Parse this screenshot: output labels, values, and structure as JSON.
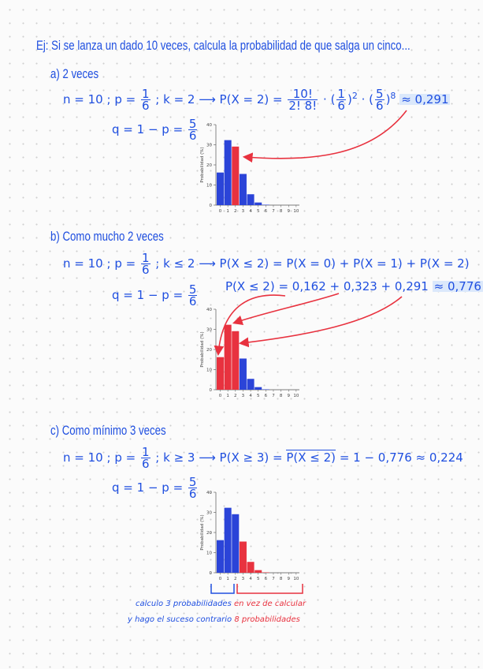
{
  "header": {
    "label": "Ej:",
    "text": "Si se lanza un dado 10 veces, calcula la probabilidad de que salga un cinco..."
  },
  "part_a": {
    "title": "a) 2 veces",
    "n": "n = 10 ;",
    "p_lhs": "p =",
    "p_num": "1",
    "p_den": "6",
    "p_sep": ";",
    "k": "k = 2",
    "arrow": "⟶",
    "lhs": "P(X = 2) =",
    "coef_num": "10!",
    "coef_den": "2! 8!",
    "dot1": "·",
    "f1_num": "1",
    "f1_den": "6",
    "exp1": "2",
    "dot2": "·",
    "f2_num": "5",
    "f2_den": "6",
    "exp2": "8",
    "approx": "≈ 0,291",
    "q_lhs": "q = 1 − p =",
    "q_num": "5",
    "q_den": "6"
  },
  "part_b": {
    "title": "b) Como mucho 2 veces",
    "n": "n = 10 ;",
    "p_lhs": "p =",
    "p_num": "1",
    "p_den": "6",
    "p_sep": ";",
    "k": "k ≤ 2",
    "arrow": "⟶",
    "expr": "P(X ≤ 2) = P(X = 0) + P(X = 1) + P(X = 2)",
    "sum_lhs": "P(X ≤ 2) =",
    "sum_terms": "0,162 + 0,323 + 0,291",
    "sum_result": "≈ 0,776",
    "q_lhs": "q = 1 − p =",
    "q_num": "5",
    "q_den": "6"
  },
  "part_c": {
    "title": "c) Como mínimo 3 veces",
    "n": "n = 10 ;",
    "p_lhs": "p =",
    "p_num": "1",
    "p_den": "6",
    "p_sep": ";",
    "k": "k ≥ 3",
    "arrow": "⟶",
    "lhs": "P(X ≥ 3) =",
    "complement": "P(X ≤ 2)",
    "rhs": "= 1 − 0,776 ≈ 0,224",
    "q_lhs": "q = 1 − p =",
    "q_num": "5",
    "q_den": "6",
    "note_blue_1": "calculo 3 probabilidades",
    "note_red_1": "en vez de calcular",
    "note_blue_2": "y hago el suceso contrario",
    "note_red_2": "8 probabilidades"
  },
  "colors": {
    "ink": "#1f4fe0",
    "red": "#e8323f",
    "bar_blue": "#2b44d8",
    "bar_red": "#e8323f",
    "highlight": "#dbe8fb"
  },
  "chart_data": [
    {
      "type": "bar",
      "ylabel": "Probabilidad (%)",
      "categories": [
        "0",
        "1",
        "2",
        "3",
        "4",
        "5",
        "6",
        "7",
        "8",
        "9",
        "10"
      ],
      "values": [
        16.2,
        32.3,
        29.1,
        15.5,
        5.4,
        1.3,
        0.2,
        0.0,
        0.0,
        0.0,
        0.0
      ],
      "highlight": [
        false,
        false,
        true,
        false,
        false,
        false,
        false,
        false,
        false,
        false,
        false
      ],
      "yticks": [
        0,
        10,
        20,
        30,
        40
      ],
      "ylim": [
        0,
        40
      ]
    },
    {
      "type": "bar",
      "ylabel": "Probabilidad (%)",
      "categories": [
        "0",
        "1",
        "2",
        "3",
        "4",
        "5",
        "6",
        "7",
        "8",
        "9",
        "10"
      ],
      "values": [
        16.2,
        32.3,
        29.1,
        15.5,
        5.4,
        1.3,
        0.2,
        0.0,
        0.0,
        0.0,
        0.0
      ],
      "highlight": [
        true,
        true,
        true,
        false,
        false,
        false,
        false,
        false,
        false,
        false,
        false
      ],
      "yticks": [
        0,
        10,
        20,
        30,
        40
      ],
      "ylim": [
        0,
        40
      ]
    },
    {
      "type": "bar",
      "ylabel": "Probabilidad (%)",
      "categories": [
        "0",
        "1",
        "2",
        "3",
        "4",
        "5",
        "6",
        "7",
        "8",
        "9",
        "10"
      ],
      "values": [
        16.2,
        32.3,
        29.1,
        15.5,
        5.4,
        1.3,
        0.2,
        0.0,
        0.0,
        0.0,
        0.0
      ],
      "highlight": [
        false,
        false,
        false,
        true,
        true,
        true,
        true,
        true,
        true,
        true,
        true
      ],
      "yticks": [
        0,
        10,
        20,
        30,
        40
      ],
      "ylim": [
        0,
        40
      ]
    }
  ]
}
